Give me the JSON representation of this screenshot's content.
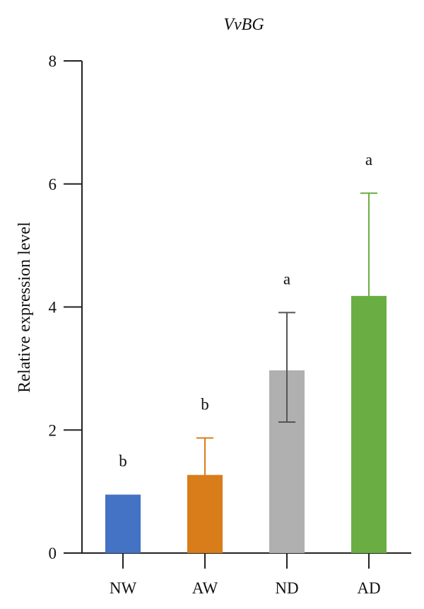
{
  "chart_data": {
    "type": "bar",
    "title": "VvBG",
    "ylabel": "Relative expression level",
    "xlabel": "",
    "ylim": [
      0,
      8
    ],
    "yticks": [
      0,
      2,
      4,
      6,
      8
    ],
    "categories": [
      "NW",
      "AW",
      "ND",
      "AD"
    ],
    "values": [
      0.95,
      1.27,
      2.97,
      4.18
    ],
    "error_upper": [
      0.95,
      1.87,
      3.91,
      5.85
    ],
    "error_lower": [
      0.95,
      1.27,
      2.13,
      2.61
    ],
    "significance": [
      "b",
      "b",
      "a",
      "a"
    ],
    "colors": [
      "#4472C4",
      "#D97C1A",
      "#AFB0AF",
      "#6AAE43"
    ],
    "error_colors": [
      "#4472C4",
      "#D97C1A",
      "#555555",
      "#6AAE43"
    ],
    "grid": false,
    "legend": "none"
  }
}
